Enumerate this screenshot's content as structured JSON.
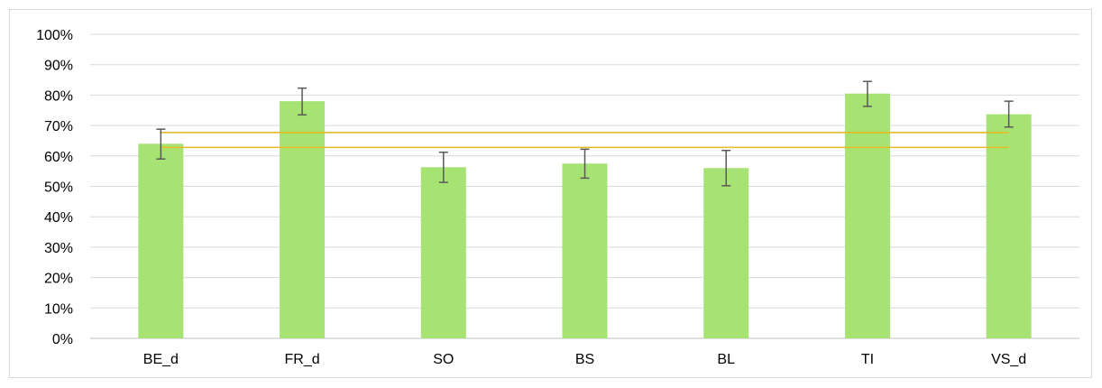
{
  "chart_data": {
    "type": "bar",
    "title": "",
    "xlabel": "",
    "ylabel": "",
    "categories": [
      "BE_d",
      "FR_d",
      "SO",
      "BS",
      "BL",
      "TI",
      "VS_d"
    ],
    "values": [
      0.64,
      0.78,
      0.563,
      0.575,
      0.56,
      0.805,
      0.737
    ],
    "error_low": [
      0.59,
      0.735,
      0.513,
      0.527,
      0.502,
      0.763,
      0.695
    ],
    "error_high": [
      0.688,
      0.823,
      0.612,
      0.622,
      0.618,
      0.845,
      0.78
    ],
    "reference_lines": [
      0.677,
      0.628
    ],
    "ylim": [
      0,
      1
    ],
    "yticks": [
      0,
      0.1,
      0.2,
      0.3,
      0.4,
      0.5,
      0.6,
      0.7,
      0.8,
      0.9,
      1.0
    ],
    "ytick_labels": [
      "0%",
      "10%",
      "20%",
      "30%",
      "40%",
      "50%",
      "60%",
      "70%",
      "80%",
      "90%",
      "100%"
    ],
    "grid": true,
    "legend": "none",
    "colors": {
      "bar": "#a6e373",
      "error_bar": "#595959",
      "reference_line": "#e8b923",
      "grid": "#d9d9d9",
      "axis": "#bfbfbf"
    }
  }
}
